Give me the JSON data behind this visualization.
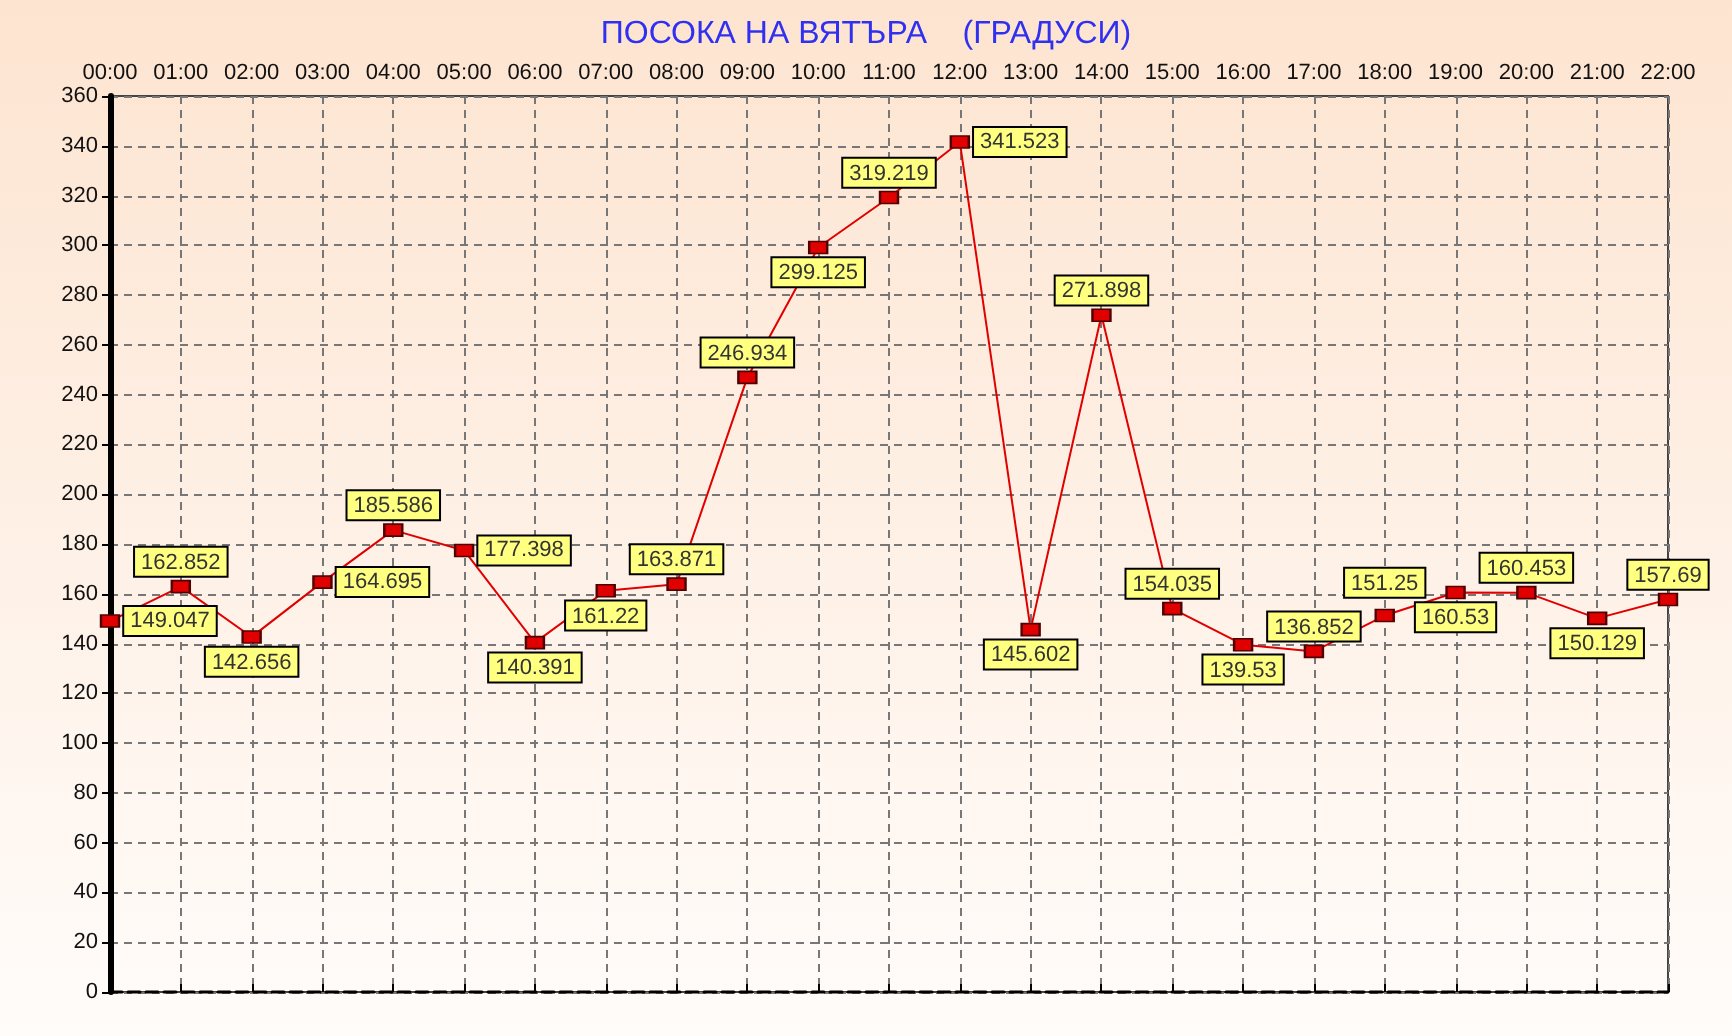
{
  "chart_data": {
    "type": "line",
    "title": "ПОСОКА НА ВЯТЪРА    (ГРАДУСИ)",
    "categories": [
      "00:00",
      "01:00",
      "02:00",
      "03:00",
      "04:00",
      "05:00",
      "06:00",
      "07:00",
      "08:00",
      "09:00",
      "10:00",
      "11:00",
      "12:00",
      "13:00",
      "14:00",
      "15:00",
      "16:00",
      "17:00",
      "18:00",
      "19:00",
      "20:00",
      "21:00",
      "22:00"
    ],
    "values": [
      149.047,
      162.852,
      142.656,
      164.695,
      185.586,
      177.398,
      140.391,
      161.22,
      163.871,
      246.934,
      299.125,
      319.219,
      341.523,
      145.602,
      271.898,
      154.035,
      139.53,
      136.852,
      151.25,
      160.53,
      160.453,
      150.129,
      157.69
    ],
    "color": "#e00000",
    "ylim": [
      0,
      360
    ],
    "yticks": [
      0,
      20,
      40,
      60,
      80,
      100,
      120,
      140,
      160,
      180,
      200,
      220,
      240,
      260,
      280,
      300,
      320,
      340,
      360
    ],
    "grid": true,
    "marker": "square",
    "line_style": "solid",
    "data_labels": true
  }
}
